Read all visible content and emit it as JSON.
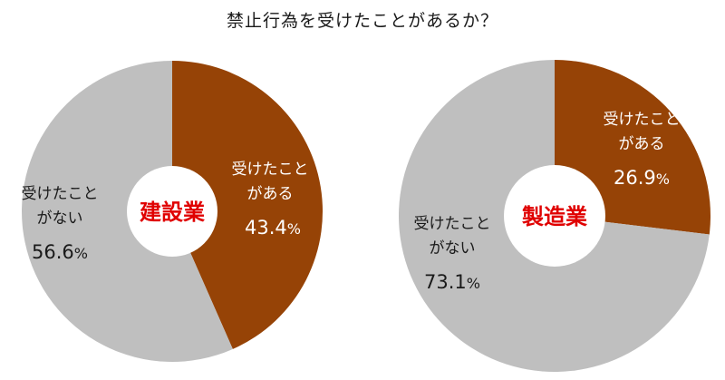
{
  "title": "禁止行為を受けたことがあるか？",
  "colors": {
    "yes": "#964306",
    "no": "#bfbfbf",
    "center_text": "#e00000"
  },
  "chart_data": [
    {
      "type": "pie",
      "center_label": "建設業",
      "slices": [
        {
          "label_line1": "受けたこと",
          "label_line2": "がある",
          "value": 43.4,
          "value_text": "43.4",
          "unit": "%",
          "color": "#964306"
        },
        {
          "label_line1": "受けたこと",
          "label_line2": "がない",
          "value": 56.6,
          "value_text": "56.6",
          "unit": "%",
          "color": "#bfbfbf"
        }
      ]
    },
    {
      "type": "pie",
      "center_label": "製造業",
      "slices": [
        {
          "label_line1": "受けたこと",
          "label_line2": "がある",
          "value": 26.9,
          "value_text": "26.9",
          "unit": "%",
          "color": "#964306"
        },
        {
          "label_line1": "受けたこと",
          "label_line2": "がない",
          "value": 73.1,
          "value_text": "73.1",
          "unit": "%",
          "color": "#bfbfbf"
        }
      ]
    }
  ]
}
